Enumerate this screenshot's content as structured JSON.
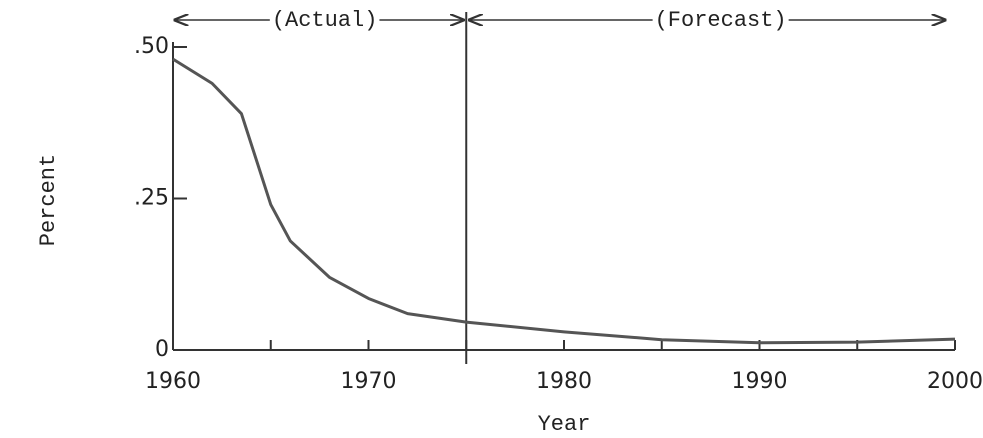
{
  "chart_data": {
    "type": "line",
    "xlabel": "Year",
    "ylabel": "Percent",
    "annotations": [
      "(Actual)",
      "(Forecast)"
    ],
    "forecast_start": 1975,
    "x": [
      1960,
      1962,
      1963.5,
      1965,
      1966,
      1968,
      1970,
      1972,
      1975,
      1980,
      1985,
      1990,
      1995,
      2000
    ],
    "series": [
      {
        "name": "Percent",
        "color": "#555",
        "values": [
          0.48,
          0.44,
          0.39,
          0.24,
          0.18,
          0.12,
          0.085,
          0.06,
          0.046,
          0.03,
          0.017,
          0.012,
          0.013,
          0.018
        ]
      }
    ],
    "xlim": [
      1960,
      2000
    ],
    "xticks": [
      1960,
      1970,
      1980,
      1990,
      2000
    ],
    "xminor_ticks": [
      1965,
      1975,
      1985,
      1995
    ],
    "ylim": [
      0,
      0.5
    ],
    "yticks": [
      {
        "value": 0,
        "label": "0"
      },
      {
        "value": 0.25,
        "label": ".25"
      },
      {
        "value": 0.5,
        "label": ".50"
      }
    ]
  }
}
